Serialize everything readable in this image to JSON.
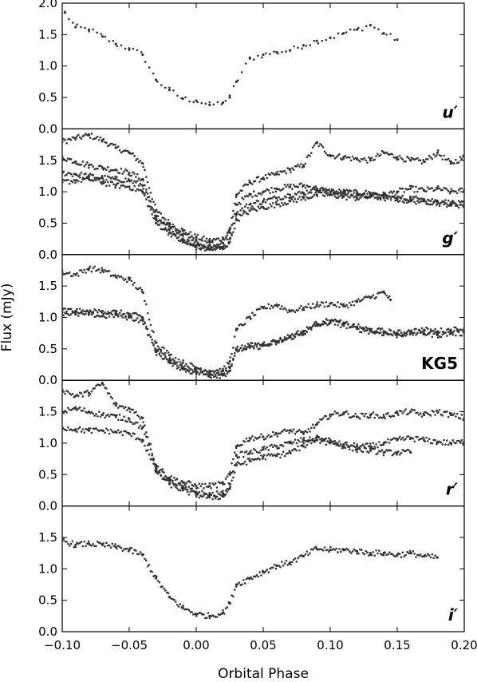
{
  "chart_data": {
    "type": "scatter",
    "xlabel": "Orbital Phase",
    "ylabel": "Flux (mJy)",
    "xlim": [
      -0.1,
      0.2
    ],
    "x_ticks": [
      "−0.10",
      "−0.05",
      "0.00",
      "0.05",
      "0.10",
      "0.15",
      "0.20"
    ],
    "shared_x": true,
    "grid": false,
    "marker_color": "#333333",
    "panels": [
      {
        "band": "u′",
        "italic": true,
        "ylim": [
          0.0,
          2.0
        ],
        "y_ticks": [
          "0.0",
          "0.5",
          "1.0",
          "1.5",
          "2.0"
        ],
        "series": [
          {
            "x": [
              -0.098,
              -0.09,
              -0.08,
              -0.07,
              -0.06,
              -0.05,
              -0.04,
              -0.03,
              -0.02,
              -0.01,
              0.0,
              0.01,
              0.02,
              0.025,
              0.03,
              0.04,
              0.05,
              0.06,
              0.07,
              0.08,
              0.09,
              0.1,
              0.11,
              0.12,
              0.13,
              0.14,
              0.15
            ],
            "y": [
              1.85,
              1.62,
              1.58,
              1.47,
              1.35,
              1.28,
              1.18,
              0.78,
              0.62,
              0.48,
              0.45,
              0.38,
              0.42,
              0.5,
              0.75,
              1.12,
              1.18,
              1.22,
              1.25,
              1.33,
              1.4,
              1.45,
              1.52,
              1.58,
              1.65,
              1.52,
              1.42
            ]
          }
        ]
      },
      {
        "band": "g′",
        "italic": true,
        "ylim": [
          0.0,
          2.0
        ],
        "y_ticks": [
          "0.0",
          "0.5",
          "1.0",
          "1.5"
        ],
        "series": [
          {
            "x": [
              -0.1,
              -0.09,
              -0.08,
              -0.07,
              -0.06,
              -0.05,
              -0.04,
              -0.03,
              -0.02,
              -0.01,
              0.0,
              0.01,
              0.02,
              0.025,
              0.03,
              0.04,
              0.05,
              0.06,
              0.07,
              0.08,
              0.09,
              0.1,
              0.11,
              0.12,
              0.13,
              0.14,
              0.15,
              0.16,
              0.17,
              0.18,
              0.19,
              0.2
            ],
            "y": [
              1.8,
              1.85,
              1.9,
              1.82,
              1.7,
              1.62,
              1.45,
              0.7,
              0.5,
              0.38,
              0.28,
              0.22,
              0.25,
              0.4,
              0.95,
              1.15,
              1.22,
              1.28,
              1.35,
              1.42,
              1.78,
              1.58,
              1.55,
              1.52,
              1.5,
              1.62,
              1.55,
              1.5,
              1.48,
              1.62,
              1.45,
              1.55
            ]
          },
          {
            "x": [
              -0.1,
              -0.09,
              -0.08,
              -0.07,
              -0.06,
              -0.05,
              -0.04,
              -0.03,
              -0.02,
              -0.01,
              0.0,
              0.01,
              0.02,
              0.025,
              0.03,
              0.04,
              0.05,
              0.06,
              0.07,
              0.08,
              0.09,
              0.1,
              0.11,
              0.12,
              0.13,
              0.14,
              0.15,
              0.16,
              0.17,
              0.18,
              0.19,
              0.2
            ],
            "y": [
              1.55,
              1.48,
              1.42,
              1.38,
              1.35,
              1.3,
              1.2,
              0.6,
              0.45,
              0.3,
              0.22,
              0.15,
              0.18,
              0.35,
              0.8,
              0.95,
              1.0,
              1.05,
              1.08,
              1.1,
              1.05,
              1.0,
              1.0,
              0.98,
              0.98,
              0.95,
              1.0,
              1.05,
              1.02,
              1.05,
              1.0,
              1.02
            ]
          },
          {
            "x": [
              -0.1,
              -0.09,
              -0.08,
              -0.07,
              -0.06,
              -0.05,
              -0.04,
              -0.03,
              -0.02,
              -0.01,
              0.0,
              0.01,
              0.02,
              0.025,
              0.03,
              0.04,
              0.05,
              0.06,
              0.07,
              0.08,
              0.09,
              0.1,
              0.11,
              0.12,
              0.13,
              0.14,
              0.15,
              0.16,
              0.17,
              0.18,
              0.19,
              0.2
            ],
            "y": [
              1.3,
              1.28,
              1.25,
              1.22,
              1.2,
              1.18,
              1.1,
              0.55,
              0.4,
              0.25,
              0.15,
              0.1,
              0.12,
              0.25,
              0.65,
              0.8,
              0.85,
              0.9,
              0.95,
              0.98,
              1.05,
              1.0,
              0.98,
              0.95,
              0.95,
              0.92,
              0.9,
              0.9,
              0.88,
              0.85,
              0.82,
              0.8
            ]
          },
          {
            "x": [
              -0.1,
              -0.09,
              -0.08,
              -0.07,
              -0.06,
              -0.05,
              -0.04,
              -0.03,
              -0.02,
              -0.01,
              0.0,
              0.01,
              0.02,
              0.025,
              0.03,
              0.04,
              0.05,
              0.06,
              0.07,
              0.08,
              0.09,
              0.1,
              0.11,
              0.12,
              0.13,
              0.14,
              0.15,
              0.16,
              0.17,
              0.18,
              0.19,
              0.2
            ],
            "y": [
              1.15,
              1.18,
              1.2,
              1.15,
              1.1,
              1.08,
              1.0,
              0.5,
              0.35,
              0.2,
              0.12,
              0.08,
              0.1,
              0.2,
              0.55,
              0.7,
              0.75,
              0.8,
              0.85,
              0.9,
              0.95,
              0.95,
              0.92,
              0.9,
              0.92,
              0.9,
              0.88,
              0.85,
              0.85,
              0.82,
              0.8,
              0.78
            ]
          }
        ]
      },
      {
        "band": "KG5",
        "italic": false,
        "ylim": [
          0.0,
          2.0
        ],
        "y_ticks": [
          "0.0",
          "0.5",
          "1.0",
          "1.5"
        ],
        "series": [
          {
            "x": [
              -0.1,
              -0.09,
              -0.08,
              -0.07,
              -0.06,
              -0.05,
              -0.04,
              -0.03,
              -0.02,
              -0.01,
              0.0,
              0.01,
              0.02,
              0.025,
              0.03,
              0.04,
              0.05,
              0.06,
              0.07,
              0.08,
              0.09,
              0.1,
              0.11,
              0.12,
              0.13,
              0.14,
              0.145
            ],
            "y": [
              1.72,
              1.68,
              1.78,
              1.75,
              1.65,
              1.6,
              1.4,
              0.6,
              0.4,
              0.28,
              0.2,
              0.15,
              0.15,
              0.3,
              0.8,
              1.0,
              1.15,
              1.2,
              1.1,
              1.15,
              1.2,
              1.22,
              1.18,
              1.25,
              1.32,
              1.4,
              1.28
            ]
          },
          {
            "x": [
              -0.1,
              -0.09,
              -0.08,
              -0.07,
              -0.06,
              -0.05,
              -0.04,
              -0.03,
              -0.02,
              -0.01,
              0.0,
              0.01,
              0.02,
              0.025,
              0.03,
              0.04,
              0.05,
              0.06,
              0.07,
              0.08,
              0.09,
              0.1,
              0.11,
              0.12,
              0.13,
              0.14,
              0.15,
              0.16,
              0.17,
              0.18,
              0.19,
              0.2
            ],
            "y": [
              1.12,
              1.1,
              1.08,
              1.1,
              1.08,
              1.05,
              1.0,
              0.48,
              0.32,
              0.2,
              0.15,
              0.12,
              0.1,
              0.2,
              0.5,
              0.55,
              0.58,
              0.62,
              0.7,
              0.78,
              0.9,
              0.95,
              0.9,
              0.85,
              0.8,
              0.78,
              0.75,
              0.78,
              0.8,
              0.78,
              0.8,
              0.82
            ]
          },
          {
            "x": [
              -0.1,
              -0.09,
              -0.08,
              -0.07,
              -0.06,
              -0.05,
              -0.04,
              -0.03,
              -0.02,
              -0.01,
              0.0,
              0.01,
              0.02,
              0.025,
              0.03,
              0.04,
              0.05,
              0.06,
              0.07,
              0.08,
              0.09,
              0.1,
              0.11,
              0.12,
              0.13,
              0.14,
              0.15,
              0.16,
              0.17,
              0.18,
              0.19,
              0.2
            ],
            "y": [
              1.08,
              1.05,
              1.06,
              1.02,
              1.04,
              1.0,
              0.95,
              0.45,
              0.3,
              0.18,
              0.12,
              0.08,
              0.08,
              0.15,
              0.48,
              0.52,
              0.55,
              0.6,
              0.68,
              0.75,
              0.88,
              0.92,
              0.88,
              0.82,
              0.78,
              0.75,
              0.72,
              0.75,
              0.75,
              0.72,
              0.75,
              0.75
            ]
          }
        ]
      },
      {
        "band": "r′",
        "italic": true,
        "ylim": [
          0.0,
          2.0
        ],
        "y_ticks": [
          "0.0",
          "0.5",
          "1.0",
          "1.5"
        ],
        "series": [
          {
            "x": [
              -0.1,
              -0.09,
              -0.08,
              -0.07,
              -0.06,
              -0.05,
              -0.04,
              -0.03,
              -0.02,
              -0.01,
              0.0,
              0.01,
              0.02,
              0.025,
              0.03,
              0.04,
              0.05,
              0.06,
              0.07,
              0.08,
              0.09,
              0.1,
              0.11,
              0.12,
              0.13,
              0.14,
              0.15,
              0.16,
              0.17,
              0.18,
              0.19,
              0.2
            ],
            "y": [
              1.85,
              1.75,
              1.8,
              1.95,
              1.6,
              1.55,
              1.4,
              0.65,
              0.45,
              0.38,
              0.32,
              0.32,
              0.35,
              0.5,
              0.95,
              1.08,
              1.1,
              1.15,
              1.2,
              1.15,
              1.3,
              1.45,
              1.48,
              1.42,
              1.45,
              1.42,
              1.48,
              1.5,
              1.45,
              1.5,
              1.45,
              1.4
            ]
          },
          {
            "x": [
              -0.1,
              -0.09,
              -0.08,
              -0.07,
              -0.06,
              -0.05,
              -0.04,
              -0.03,
              -0.02,
              -0.01,
              0.0,
              0.01,
              0.02,
              0.025,
              0.03,
              0.04,
              0.05,
              0.06,
              0.07,
              0.08,
              0.09,
              0.1,
              0.11,
              0.12,
              0.13,
              0.14,
              0.15,
              0.16,
              0.17,
              0.18,
              0.19,
              0.2
            ],
            "y": [
              1.5,
              1.55,
              1.5,
              1.45,
              1.42,
              1.38,
              1.25,
              0.6,
              0.4,
              0.3,
              0.22,
              0.18,
              0.2,
              0.35,
              0.8,
              0.85,
              0.9,
              0.95,
              1.0,
              1.05,
              1.05,
              1.0,
              0.98,
              0.95,
              0.95,
              1.0,
              1.05,
              1.08,
              1.05,
              1.02,
              1.0,
              1.02
            ]
          },
          {
            "x": [
              -0.1,
              -0.09,
              -0.08,
              -0.07,
              -0.06,
              -0.05,
              -0.04,
              -0.03,
              -0.02,
              -0.01,
              0.0,
              0.01,
              0.02,
              0.025,
              0.03,
              0.04,
              0.05,
              0.06,
              0.07,
              0.08,
              0.09,
              0.1,
              0.11,
              0.12,
              0.13,
              0.14,
              0.15,
              0.16
            ],
            "y": [
              1.25,
              1.22,
              1.2,
              1.2,
              1.18,
              1.15,
              1.05,
              0.55,
              0.35,
              0.25,
              0.18,
              0.14,
              0.15,
              0.28,
              0.65,
              0.72,
              0.78,
              0.8,
              0.85,
              0.95,
              1.1,
              1.05,
              0.95,
              0.9,
              0.88,
              0.85,
              0.85,
              0.85
            ]
          }
        ]
      },
      {
        "band": "i′",
        "italic": true,
        "ylim": [
          0.0,
          2.0
        ],
        "y_ticks": [
          "0.0",
          "0.5",
          "1.0",
          "1.5"
        ],
        "series": [
          {
            "x": [
              -0.1,
              -0.09,
              -0.08,
              -0.07,
              -0.06,
              -0.05,
              -0.04,
              -0.03,
              -0.02,
              -0.01,
              0.0,
              0.01,
              0.02,
              0.025,
              0.03,
              0.04,
              0.05,
              0.06,
              0.07,
              0.08,
              0.09,
              0.1,
              0.11,
              0.12,
              0.13,
              0.14,
              0.15,
              0.16,
              0.17,
              0.18
            ],
            "y": [
              1.45,
              1.38,
              1.4,
              1.38,
              1.35,
              1.3,
              1.22,
              0.85,
              0.55,
              0.38,
              0.28,
              0.25,
              0.3,
              0.45,
              0.75,
              0.85,
              0.95,
              1.05,
              1.1,
              1.2,
              1.32,
              1.3,
              1.3,
              1.28,
              1.25,
              1.25,
              1.22,
              1.25,
              1.2,
              1.18
            ]
          }
        ]
      }
    ]
  }
}
